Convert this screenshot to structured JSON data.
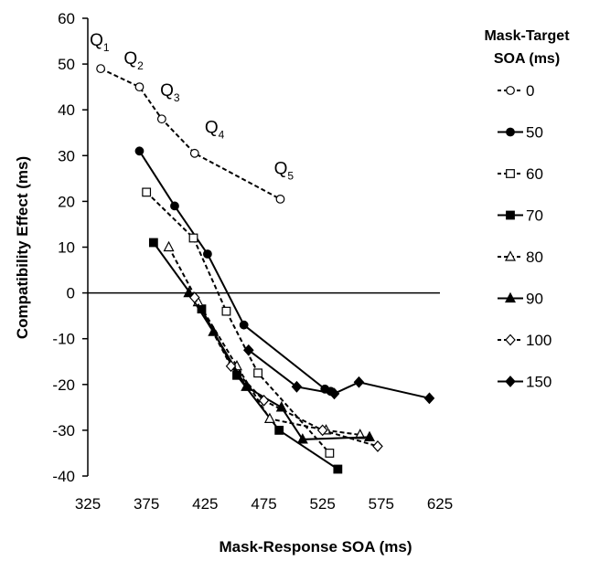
{
  "chart_data": {
    "type": "line",
    "xlabel": "Mask-Response SOA (ms)",
    "ylabel": "Compatibility Effect (ms)",
    "xlim": [
      325,
      625
    ],
    "ylim": [
      -40,
      60
    ],
    "xticks": [
      325,
      375,
      425,
      475,
      525,
      575,
      625
    ],
    "yticks": [
      -40,
      -30,
      -20,
      -10,
      0,
      10,
      20,
      30,
      40,
      50,
      60
    ],
    "grid": false,
    "legend_title": "Mask-Target SOA (ms)",
    "legend_position": "right",
    "quintile_labels": [
      {
        "base": "Q",
        "sub": "1",
        "x": 335,
        "y": 54
      },
      {
        "base": "Q",
        "sub": "2",
        "x": 364,
        "y": 50
      },
      {
        "base": "Q",
        "sub": "3",
        "x": 395,
        "y": 43
      },
      {
        "base": "Q",
        "sub": "4",
        "x": 433,
        "y": 35
      },
      {
        "base": "Q",
        "sub": "5",
        "x": 492,
        "y": 26
      }
    ],
    "series": [
      {
        "name": "0",
        "marker": "circle",
        "filled": false,
        "dashed": true,
        "x": [
          336,
          369,
          388,
          416,
          489
        ],
        "y": [
          49,
          45,
          38,
          30.5,
          20.5
        ]
      },
      {
        "name": "50",
        "marker": "circle",
        "filled": true,
        "dashed": false,
        "x": [
          369,
          399,
          427,
          458,
          527,
          532
        ],
        "y": [
          31,
          19,
          8.5,
          -7,
          -21,
          -21.5
        ]
      },
      {
        "name": "60",
        "marker": "square",
        "filled": false,
        "dashed": true,
        "x": [
          375,
          415,
          443,
          470,
          531
        ],
        "y": [
          22,
          12,
          -4,
          -17.5,
          -35
        ]
      },
      {
        "name": "70",
        "marker": "square",
        "filled": true,
        "dashed": false,
        "x": [
          381,
          422,
          452,
          488,
          538
        ],
        "y": [
          11,
          -3.5,
          -18,
          -30,
          -38.5
        ]
      },
      {
        "name": "80",
        "marker": "triangle",
        "filled": false,
        "dashed": true,
        "x": [
          394,
          419,
          452,
          480,
          528,
          557
        ],
        "y": [
          10,
          -2,
          -16,
          -27.5,
          -30,
          -31
        ]
      },
      {
        "name": "90",
        "marker": "triangle",
        "filled": true,
        "dashed": false,
        "x": [
          411,
          432,
          460,
          490,
          508,
          565
        ],
        "y": [
          0,
          -8.5,
          -20.5,
          -25,
          -32,
          -31.5
        ]
      },
      {
        "name": "100",
        "marker": "diamond",
        "filled": false,
        "dashed": true,
        "x": [
          416,
          447,
          475,
          525,
          572
        ],
        "y": [
          -1,
          -16,
          -23.5,
          -30,
          -33.5
        ]
      },
      {
        "name": "150",
        "marker": "diamond",
        "filled": true,
        "dashed": false,
        "x": [
          462,
          503,
          535,
          556,
          616
        ],
        "y": [
          -12.5,
          -20.5,
          -22,
          -19.5,
          -23
        ]
      }
    ]
  }
}
